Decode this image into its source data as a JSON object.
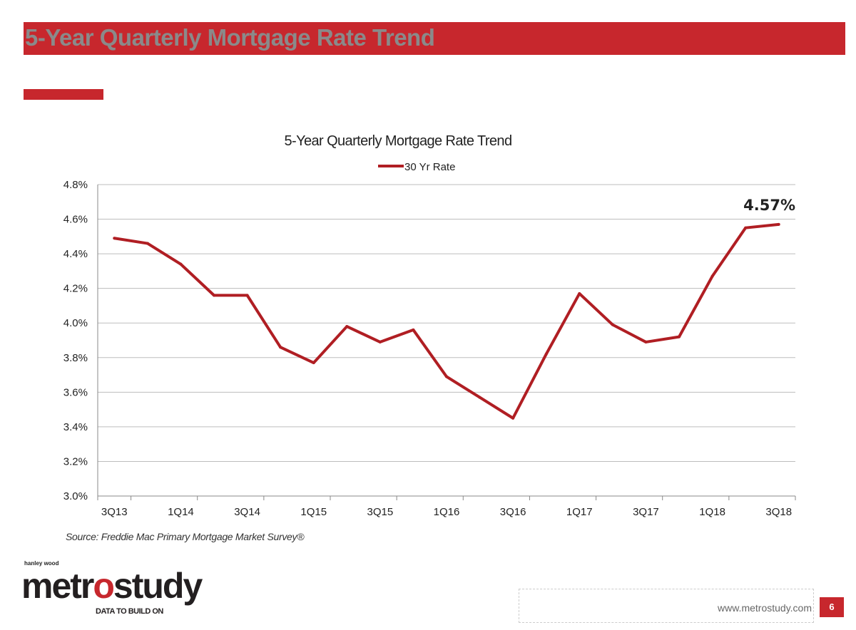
{
  "header": {
    "title": "5-Year Quarterly Mortgage Rate Trend"
  },
  "chart_data": {
    "type": "line",
    "title": "5-Year Quarterly Mortgage Rate Trend",
    "xlabel": "",
    "ylabel": "",
    "categories": [
      "3Q13",
      "4Q13",
      "1Q14",
      "2Q14",
      "3Q14",
      "4Q14",
      "1Q15",
      "2Q15",
      "3Q15",
      "4Q15",
      "1Q16",
      "2Q16",
      "3Q16",
      "4Q16",
      "1Q17",
      "2Q17",
      "3Q17",
      "4Q17",
      "1Q18",
      "2Q18",
      "3Q18"
    ],
    "tick_labels": [
      "3Q13",
      "1Q14",
      "3Q14",
      "1Q15",
      "3Q15",
      "1Q16",
      "3Q16",
      "1Q17",
      "3Q17",
      "1Q18",
      "3Q18"
    ],
    "series": [
      {
        "name": "30 Yr Rate",
        "color": "#b01e23",
        "values": [
          4.49,
          4.46,
          4.34,
          4.16,
          4.16,
          3.86,
          3.77,
          3.98,
          3.89,
          3.96,
          3.69,
          3.57,
          3.45,
          3.82,
          4.17,
          3.99,
          3.89,
          3.92,
          4.27,
          4.55,
          4.57
        ]
      }
    ],
    "ylim": [
      3.0,
      4.8
    ],
    "yticks": [
      "3.0%",
      "3.2%",
      "3.4%",
      "3.6%",
      "3.8%",
      "4.0%",
      "4.2%",
      "4.4%",
      "4.6%",
      "4.8%"
    ],
    "grid": true,
    "legend": "top-center",
    "annotation": "4.57%"
  },
  "source": "Source: Freddie Mac Primary Mortgage Market Survey®",
  "logo": {
    "top": "hanley wood",
    "main_a": "metr",
    "main_o": "o",
    "main_b": "study",
    "tagline": "DATA TO BUILD ON"
  },
  "footer": {
    "url": "www.metrostudy.com",
    "page": "6"
  }
}
